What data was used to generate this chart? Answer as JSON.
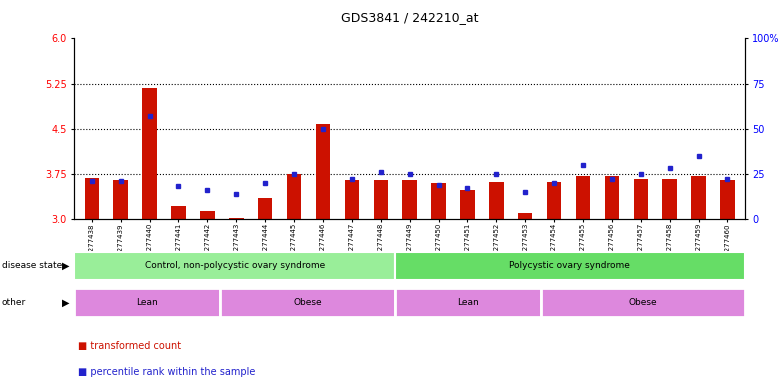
{
  "title": "GDS3841 / 242210_at",
  "samples": [
    "GSM277438",
    "GSM277439",
    "GSM277440",
    "GSM277441",
    "GSM277442",
    "GSM277443",
    "GSM277444",
    "GSM277445",
    "GSM277446",
    "GSM277447",
    "GSM277448",
    "GSM277449",
    "GSM277450",
    "GSM277451",
    "GSM277452",
    "GSM277453",
    "GSM277454",
    "GSM277455",
    "GSM277456",
    "GSM277457",
    "GSM277458",
    "GSM277459",
    "GSM277460"
  ],
  "red_values": [
    3.68,
    3.65,
    5.18,
    3.22,
    3.13,
    3.02,
    3.35,
    3.75,
    4.57,
    3.65,
    3.65,
    3.65,
    3.6,
    3.48,
    3.62,
    3.1,
    3.62,
    3.72,
    3.72,
    3.67,
    3.67,
    3.72,
    3.65
  ],
  "blue_values": [
    21,
    21,
    57,
    18,
    16,
    14,
    20,
    25,
    50,
    22,
    26,
    25,
    19,
    17,
    25,
    15,
    20,
    30,
    22,
    25,
    28,
    35,
    22
  ],
  "ylim_left": [
    3.0,
    6.0
  ],
  "ylim_right": [
    0,
    100
  ],
  "yticks_left": [
    3.0,
    3.75,
    4.5,
    5.25,
    6.0
  ],
  "yticks_right": [
    0,
    25,
    50,
    75,
    100
  ],
  "hlines": [
    3.75,
    4.5,
    5.25
  ],
  "disease_state_groups": [
    {
      "label": "Control, non-polycystic ovary syndrome",
      "start": 0,
      "end": 11,
      "color": "#99EE99"
    },
    {
      "label": "Polycystic ovary syndrome",
      "start": 11,
      "end": 23,
      "color": "#66DD66"
    }
  ],
  "other_groups": [
    {
      "label": "Lean",
      "start": 0,
      "end": 5,
      "color": "#DD88DD"
    },
    {
      "label": "Obese",
      "start": 5,
      "end": 11,
      "color": "#DD88DD"
    },
    {
      "label": "Lean",
      "start": 11,
      "end": 16,
      "color": "#DD88DD"
    },
    {
      "label": "Obese",
      "start": 16,
      "end": 23,
      "color": "#DD88DD"
    }
  ],
  "bar_color": "#CC1100",
  "dot_color": "#2222CC",
  "base_value": 3.0
}
